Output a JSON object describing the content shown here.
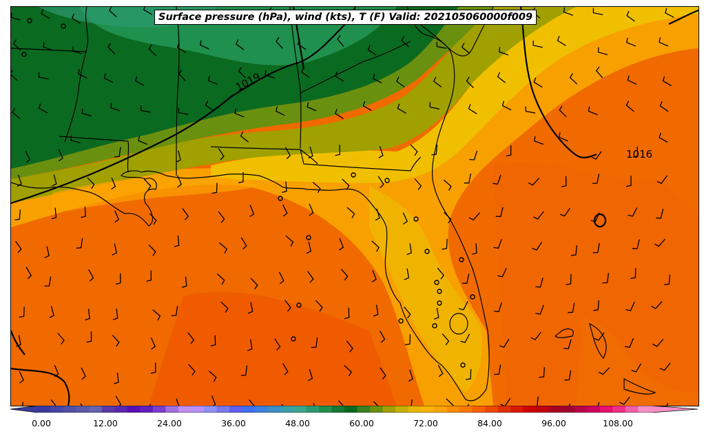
{
  "title": "Surface pressure (hPa), wind (kts), T (F) Valid: 202105060000f009",
  "isobars": [
    {
      "label": "1019"
    },
    {
      "label": "1016"
    }
  ],
  "colorbar": {
    "ticks": [
      "0.00",
      "12.00",
      "24.00",
      "36.00",
      "48.00",
      "60.00",
      "72.00",
      "84.00",
      "96.00",
      "108.00"
    ],
    "colors": [
      "#3a3aa0",
      "#4646a8",
      "#5050a8",
      "#5a5aa8",
      "#6464b0",
      "#5a3aa8",
      "#5a28b0",
      "#5a10b4",
      "#6020c0",
      "#7a40d0",
      "#a070e0",
      "#c090f0",
      "#b890f8",
      "#9090f8",
      "#7878f0",
      "#6060f0",
      "#4070f0",
      "#3a80e0",
      "#3a90c8",
      "#3aa0a8",
      "#3aa890",
      "#2c9a70",
      "#20904e",
      "#147a38",
      "#0a6a20",
      "#3a8020",
      "#6a9010",
      "#a0a000",
      "#c8b000",
      "#e8b800",
      "#f8b400",
      "#fca400",
      "#fc8c00",
      "#fc7800",
      "#f86000",
      "#f04800",
      "#e03000",
      "#d81a00",
      "#d00000",
      "#c00010",
      "#a80020",
      "#a00030",
      "#b80048",
      "#d00060",
      "#e81070",
      "#f03088",
      "#f060a8",
      "#f890c8"
    ]
  }
}
